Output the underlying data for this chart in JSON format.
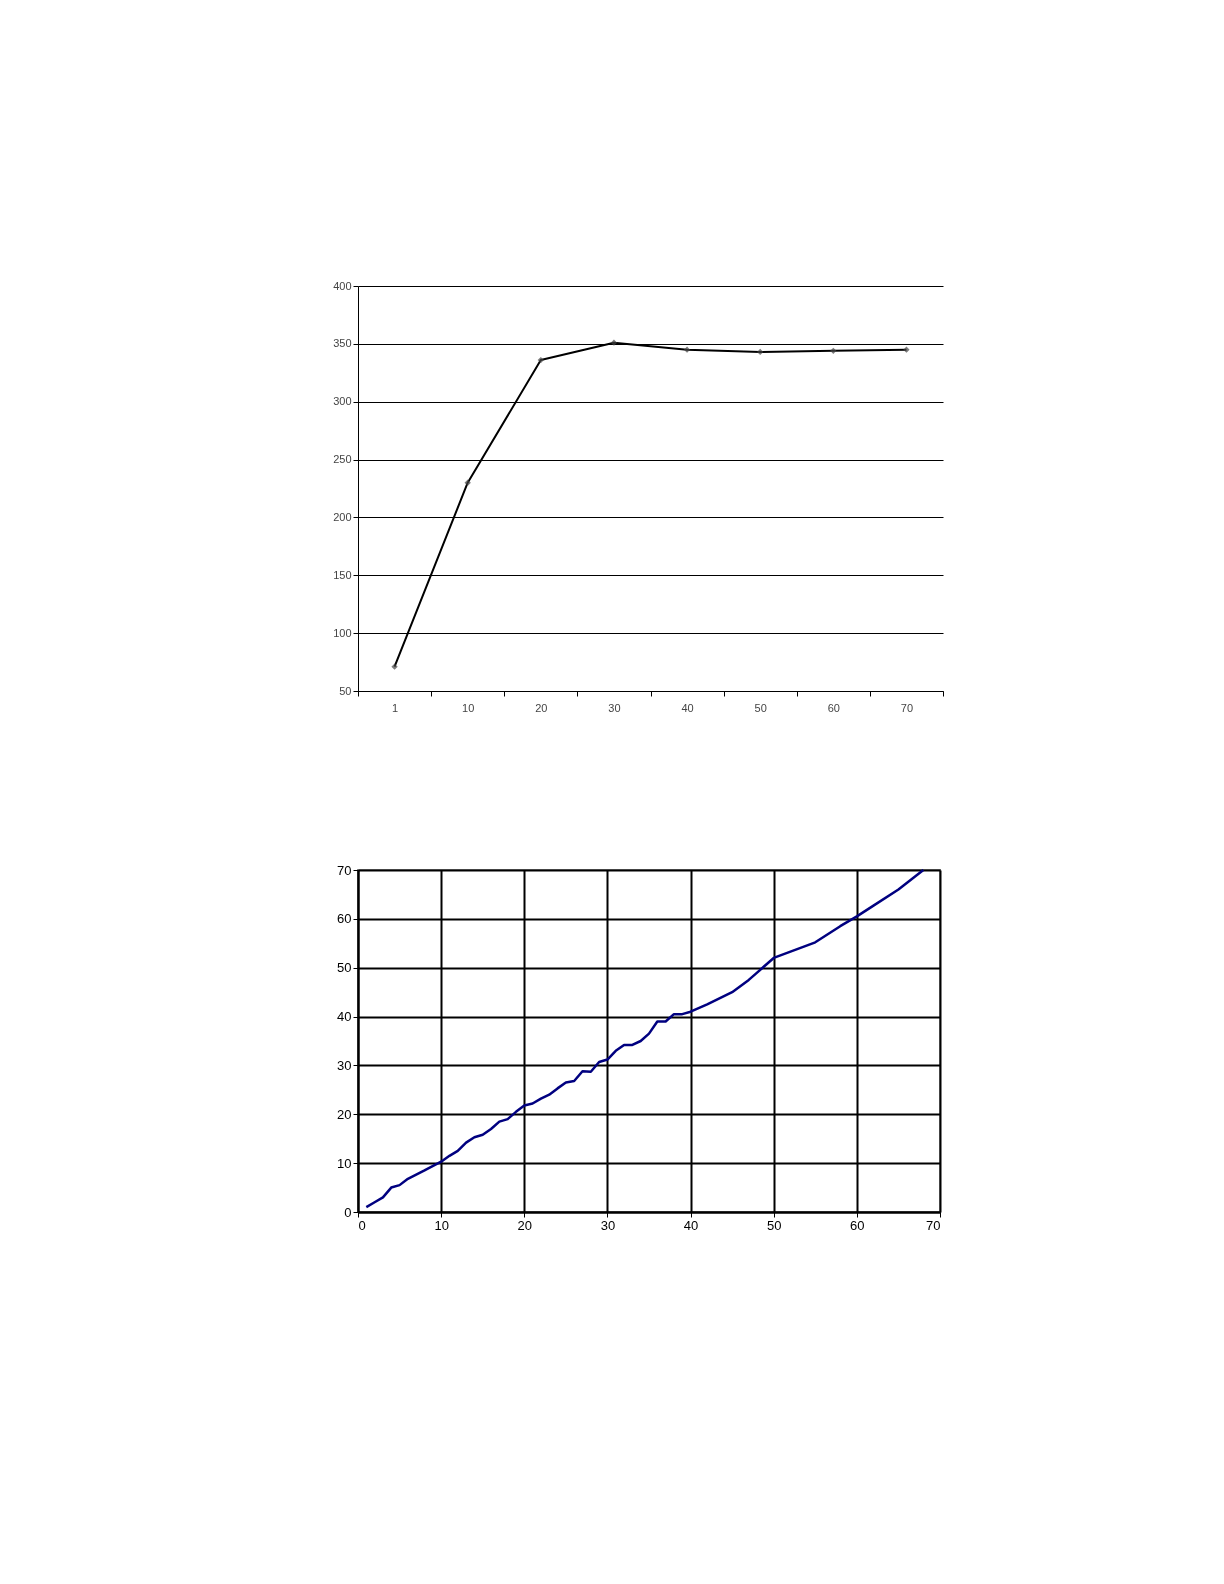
{
  "chart_data": [
    {
      "type": "line",
      "categories": [
        "1",
        "10",
        "20",
        "30",
        "40",
        "50",
        "60",
        "70"
      ],
      "series": [
        {
          "color": "#000000",
          "values": [
            71,
            230,
            336,
            351,
            345,
            343,
            344,
            345
          ]
        }
      ],
      "ylim": [
        50,
        400
      ],
      "yticks": [
        50,
        100,
        150,
        200,
        250,
        300,
        350,
        400
      ],
      "grid": "y",
      "marker": "diamond",
      "legend": false
    },
    {
      "type": "line",
      "x": [
        1,
        2,
        3,
        4,
        5,
        6,
        8,
        10,
        11,
        12,
        13,
        14,
        15,
        16,
        17,
        18,
        19,
        20,
        21,
        22,
        23,
        24,
        25,
        26,
        27,
        28,
        29,
        30,
        31,
        32,
        33,
        34,
        35,
        36,
        37,
        38,
        39,
        40,
        42,
        45,
        47,
        48,
        50,
        55,
        58,
        60,
        62,
        65,
        68
      ],
      "series": [
        {
          "color": "#000080",
          "values": [
            1,
            2,
            3,
            5,
            5.5,
            6.8,
            8.5,
            10.3,
            11.5,
            12.5,
            14.2,
            15.3,
            15.8,
            17,
            18.5,
            19,
            20.5,
            21.8,
            22.2,
            23.2,
            24,
            25.3,
            26.5,
            26.8,
            28.8,
            28.7,
            30.7,
            31.2,
            33,
            34.2,
            34.2,
            35,
            36.5,
            39,
            39,
            40.5,
            40.5,
            41,
            42.5,
            45,
            47.5,
            49,
            52,
            55.2,
            58.5,
            60.5,
            62.7,
            66,
            70
          ]
        }
      ],
      "xlim": [
        0,
        70
      ],
      "xticks": [
        0,
        10,
        20,
        30,
        40,
        50,
        60,
        70
      ],
      "ylim": [
        0,
        70
      ],
      "yticks": [
        0,
        10,
        20,
        30,
        40,
        50,
        60,
        70
      ],
      "grid": true,
      "marker": "none",
      "legend": false
    }
  ]
}
